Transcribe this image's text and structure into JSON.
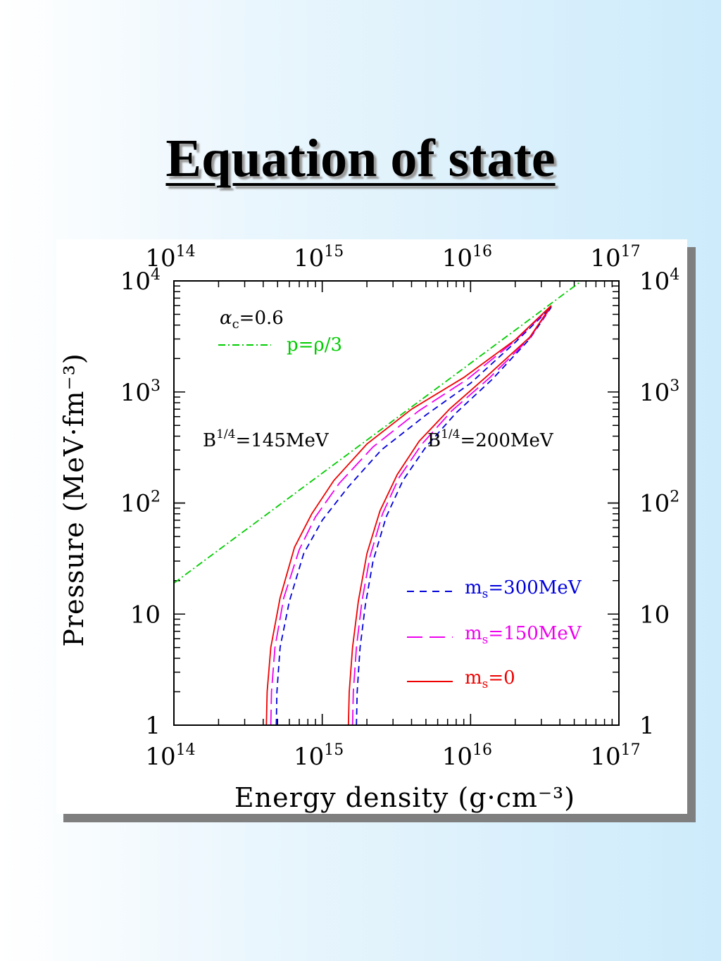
{
  "slide": {
    "title": "Equation of state"
  },
  "colors": {
    "green": "#00cc00",
    "blue": "#0000dd",
    "magenta": "#ee00ee",
    "red": "#ee0000"
  },
  "chart_data": {
    "type": "line",
    "xlabel": "Energy density (g·cm⁻³)",
    "ylabel": "Pressure (MeV·fm⁻³)",
    "x_scale": "log",
    "y_scale": "log",
    "xlim": [
      100000000000000.0,
      1e+17
    ],
    "ylim": [
      1,
      10000
    ],
    "x_ticks": [
      {
        "base": "10",
        "exp": "14"
      },
      {
        "base": "10",
        "exp": "15"
      },
      {
        "base": "10",
        "exp": "16"
      },
      {
        "base": "10",
        "exp": "17"
      }
    ],
    "y_ticks": [
      {
        "base": "1",
        "exp": ""
      },
      {
        "base": "10",
        "exp": ""
      },
      {
        "base": "10",
        "exp": "2"
      },
      {
        "base": "10",
        "exp": "3"
      },
      {
        "base": "10",
        "exp": "4"
      }
    ],
    "annotations": {
      "alpha_c": {
        "symbol": "α",
        "sub": "c",
        "rest": "=0.6"
      },
      "b145": {
        "base": "B",
        "exp": "1/4",
        "rest": "=145MeV"
      },
      "b200": {
        "base": "B",
        "exp": "1/4",
        "rest": "=200MeV"
      }
    },
    "legend": {
      "placement": "top-left",
      "label": "p=ρ/3"
    },
    "legend_ms": {
      "placement": "bottom-right",
      "items": [
        {
          "m": "m",
          "sub": "s",
          "rest": "=300MeV"
        },
        {
          "m": "m",
          "sub": "s",
          "rest": "=150MeV"
        },
        {
          "m": "m",
          "sub": "s",
          "rest": "=0"
        }
      ]
    },
    "series": [
      {
        "group": "p=rho/3",
        "style": "dashdot",
        "x": [
          100000000000000.0,
          5.6e+16
        ],
        "y": [
          19,
          10000
        ]
      },
      {
        "group": "B145",
        "style": "dash",
        "x": [
          490000000000000.0,
          495000000000000.0,
          520000000000000.0,
          600000000000000.0,
          750000000000000.0,
          1000000000000000.0,
          1500000000000000.0,
          2500000000000000.0,
          5000000000000000.0,
          1e+16,
          2e+16,
          3.5e+16
        ],
        "y": [
          1,
          2,
          5,
          13,
          35,
          70,
          140,
          300,
          620,
          1200,
          2800,
          5800
        ]
      },
      {
        "group": "B145",
        "style": "longdash",
        "x": [
          450000000000000.0,
          455000000000000.0,
          480000000000000.0,
          550000000000000.0,
          700000000000000.0,
          900000000000000.0,
          1300000000000000.0,
          2200000000000000.0,
          4500000000000000.0,
          9500000000000000.0,
          2e+16,
          3.5e+16
        ],
        "y": [
          1,
          2,
          5,
          14,
          38,
          75,
          150,
          320,
          680,
          1300,
          2900,
          5900
        ]
      },
      {
        "group": "B145",
        "style": "solid",
        "x": [
          420000000000000.0,
          425000000000000.0,
          450000000000000.0,
          520000000000000.0,
          650000000000000.0,
          850000000000000.0,
          1200000000000000.0,
          2000000000000000.0,
          4000000000000000.0,
          9000000000000000.0,
          2e+16,
          3.5e+16
        ],
        "y": [
          1,
          2,
          5,
          14,
          40,
          80,
          160,
          340,
          700,
          1350,
          2950,
          6000
        ]
      },
      {
        "group": "B200",
        "style": "dash",
        "x": [
          1700000000000000.0,
          1720000000000000.0,
          1800000000000000.0,
          1950000000000000.0,
          2200000000000000.0,
          2700000000000000.0,
          3500000000000000.0,
          5000000000000000.0,
          8000000000000000.0,
          1.4e+16,
          2.5e+16,
          3.5e+16
        ],
        "y": [
          1,
          2,
          5,
          12,
          30,
          75,
          160,
          320,
          650,
          1300,
          3000,
          5800
        ]
      },
      {
        "group": "B200",
        "style": "longdash",
        "x": [
          1600000000000000.0,
          1620000000000000.0,
          1700000000000000.0,
          1850000000000000.0,
          2100000000000000.0,
          2550000000000000.0,
          3300000000000000.0,
          4700000000000000.0,
          7500000000000000.0,
          1.35e+16,
          2.5e+16,
          3.5e+16
        ],
        "y": [
          1,
          2,
          5,
          13,
          33,
          80,
          170,
          340,
          680,
          1350,
          3050,
          5900
        ]
      },
      {
        "group": "B200",
        "style": "solid",
        "x": [
          1500000000000000.0,
          1520000000000000.0,
          1600000000000000.0,
          1750000000000000.0,
          2000000000000000.0,
          2450000000000000.0,
          3200000000000000.0,
          4500000000000000.0,
          7200000000000000.0,
          1.3e+16,
          2.5e+16,
          3.5e+16
        ],
        "y": [
          1,
          2,
          5,
          13,
          35,
          85,
          180,
          360,
          700,
          1400,
          3100,
          6000
        ]
      }
    ]
  }
}
